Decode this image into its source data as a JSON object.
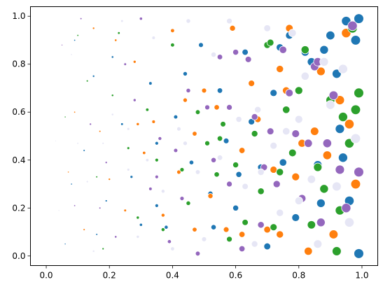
{
  "chart_data": {
    "type": "scatter",
    "title": "",
    "xlabel": "",
    "ylabel": "",
    "xlim": [
      -0.05,
      1.05
    ],
    "ylim": [
      -0.04,
      1.04
    ],
    "grid": false,
    "legend": "none",
    "x_ticks": [
      "0.0",
      "0.2",
      "0.4",
      "0.6",
      "0.8",
      "1.0"
    ],
    "y_ticks": [
      "0.0",
      "0.2",
      "0.4",
      "0.6",
      "0.8",
      "1.0"
    ],
    "x_tick_values": [
      0,
      0.2,
      0.4,
      0.6,
      0.8,
      1.0
    ],
    "y_tick_values": [
      0,
      0.2,
      0.4,
      0.6,
      0.8,
      1.0
    ],
    "marker_note": "marker size grows with x",
    "series": [
      {
        "color": "#1f77b4",
        "points": [
          [
            0.06,
            0.05
          ],
          [
            0.08,
            0.3
          ],
          [
            0.09,
            0.9
          ],
          [
            0.12,
            0.44
          ],
          [
            0.15,
            0.75
          ],
          [
            0.16,
            0.09
          ],
          [
            0.19,
            0.23
          ],
          [
            0.21,
            0.83
          ],
          [
            0.24,
            0.55
          ],
          [
            0.27,
            0.33
          ],
          [
            0.3,
            0.13
          ],
          [
            0.33,
            0.72
          ],
          [
            0.35,
            0.47
          ],
          [
            0.38,
            0.12
          ],
          [
            0.41,
            0.58
          ],
          [
            0.44,
            0.76
          ],
          [
            0.46,
            0.39
          ],
          [
            0.49,
            0.88
          ],
          [
            0.52,
            0.26
          ],
          [
            0.55,
            0.69
          ],
          [
            0.57,
            0.48
          ],
          [
            0.6,
            0.2
          ],
          [
            0.63,
            0.85
          ],
          [
            0.65,
            0.56
          ],
          [
            0.68,
            0.37
          ],
          [
            0.7,
            0.04
          ],
          [
            0.72,
            0.68
          ],
          [
            0.74,
            0.87
          ],
          [
            0.75,
            0.39
          ],
          [
            0.77,
            0.92
          ],
          [
            0.79,
            0.16
          ],
          [
            0.82,
            0.85
          ],
          [
            0.84,
            0.81
          ],
          [
            0.86,
            0.38
          ],
          [
            0.87,
            0.22
          ],
          [
            0.88,
            0.86
          ],
          [
            0.9,
            0.92
          ],
          [
            0.92,
            0.76
          ],
          [
            0.93,
            0.53
          ],
          [
            0.95,
            0.98
          ],
          [
            0.96,
            0.23
          ],
          [
            0.98,
            0.9
          ],
          [
            0.99,
            0.01
          ],
          [
            0.99,
            0.99
          ],
          [
            0.94,
            0.41
          ],
          [
            0.61,
            0.34
          ],
          [
            0.53,
            0.12
          ],
          [
            0.35,
            0.21
          ]
        ]
      },
      {
        "color": "#ff7f0e",
        "points": [
          [
            0.07,
            0.35
          ],
          [
            0.09,
            0.6
          ],
          [
            0.12,
            0.11
          ],
          [
            0.15,
            0.95
          ],
          [
            0.17,
            0.52
          ],
          [
            0.2,
            0.32
          ],
          [
            0.22,
            0.9
          ],
          [
            0.25,
            0.19
          ],
          [
            0.28,
            0.81
          ],
          [
            0.31,
            0.43
          ],
          [
            0.34,
            0.56
          ],
          [
            0.37,
            0.17
          ],
          [
            0.4,
            0.94
          ],
          [
            0.42,
            0.35
          ],
          [
            0.44,
            0.65
          ],
          [
            0.47,
            0.11
          ],
          [
            0.5,
            0.69
          ],
          [
            0.52,
            0.25
          ],
          [
            0.54,
            0.62
          ],
          [
            0.57,
            0.11
          ],
          [
            0.59,
            0.95
          ],
          [
            0.62,
            0.44
          ],
          [
            0.65,
            0.72
          ],
          [
            0.67,
            0.57
          ],
          [
            0.7,
            0.11
          ],
          [
            0.72,
            0.36
          ],
          [
            0.74,
            0.78
          ],
          [
            0.76,
            0.69
          ],
          [
            0.77,
            0.95
          ],
          [
            0.79,
            0.33
          ],
          [
            0.81,
            0.47
          ],
          [
            0.83,
            0.02
          ],
          [
            0.85,
            0.52
          ],
          [
            0.87,
            0.77
          ],
          [
            0.89,
            0.42
          ],
          [
            0.91,
            0.09
          ],
          [
            0.93,
            0.65
          ],
          [
            0.95,
            0.93
          ],
          [
            0.96,
            0.55
          ],
          [
            0.98,
            0.3
          ],
          [
            0.74,
            0.09
          ],
          [
            0.62,
            0.09
          ],
          [
            0.47,
            0.51
          ],
          [
            0.29,
            0.55
          ]
        ]
      },
      {
        "color": "#2ca02c",
        "points": [
          [
            0.06,
            0.58
          ],
          [
            0.1,
            0.92
          ],
          [
            0.13,
            0.73
          ],
          [
            0.16,
            0.33
          ],
          [
            0.18,
            0.03
          ],
          [
            0.21,
            0.67
          ],
          [
            0.23,
            0.93
          ],
          [
            0.26,
            0.45
          ],
          [
            0.29,
            0.16
          ],
          [
            0.32,
            0.61
          ],
          [
            0.35,
            0.4
          ],
          [
            0.37,
            0.11
          ],
          [
            0.4,
            0.88
          ],
          [
            0.43,
            0.36
          ],
          [
            0.45,
            0.22
          ],
          [
            0.48,
            0.6
          ],
          [
            0.51,
            0.47
          ],
          [
            0.54,
            0.34
          ],
          [
            0.56,
            0.55
          ],
          [
            0.58,
            0.07
          ],
          [
            0.6,
            0.38
          ],
          [
            0.63,
            0.14
          ],
          [
            0.66,
            0.51
          ],
          [
            0.68,
            0.27
          ],
          [
            0.7,
            0.88
          ],
          [
            0.72,
            0.12
          ],
          [
            0.74,
            0.35
          ],
          [
            0.76,
            0.61
          ],
          [
            0.78,
            0.43
          ],
          [
            0.8,
            0.69
          ],
          [
            0.82,
            0.86
          ],
          [
            0.84,
            0.13
          ],
          [
            0.86,
            0.37
          ],
          [
            0.88,
            0.28
          ],
          [
            0.9,
            0.65
          ],
          [
            0.92,
            0.02
          ],
          [
            0.94,
            0.58
          ],
          [
            0.96,
            0.47
          ],
          [
            0.97,
            0.95
          ],
          [
            0.99,
            0.68
          ],
          [
            0.93,
            0.19
          ],
          [
            0.98,
            0.61
          ],
          [
            0.71,
            0.89
          ],
          [
            0.55,
            0.49
          ]
        ]
      },
      {
        "color": "#9467bd",
        "points": [
          [
            0.05,
            0.88
          ],
          [
            0.09,
            0.21
          ],
          [
            0.11,
            0.99
          ],
          [
            0.14,
            0.55
          ],
          [
            0.17,
            0.2
          ],
          [
            0.19,
            0.39
          ],
          [
            0.22,
            0.08
          ],
          [
            0.25,
            0.8
          ],
          [
            0.28,
            0.65
          ],
          [
            0.3,
            0.99
          ],
          [
            0.33,
            0.28
          ],
          [
            0.36,
            0.49
          ],
          [
            0.39,
            0.06
          ],
          [
            0.41,
            0.44
          ],
          [
            0.43,
            0.24
          ],
          [
            0.45,
            0.69
          ],
          [
            0.48,
            0.01
          ],
          [
            0.51,
            0.62
          ],
          [
            0.53,
            0.4
          ],
          [
            0.55,
            0.83
          ],
          [
            0.58,
            0.3
          ],
          [
            0.6,
            0.85
          ],
          [
            0.62,
            0.03
          ],
          [
            0.64,
            0.82
          ],
          [
            0.66,
            0.58
          ],
          [
            0.68,
            0.13
          ],
          [
            0.69,
            0.37
          ],
          [
            0.71,
            0.52
          ],
          [
            0.73,
            0.3
          ],
          [
            0.75,
            0.86
          ],
          [
            0.77,
            0.68
          ],
          [
            0.79,
            0.51
          ],
          [
            0.81,
            0.24
          ],
          [
            0.83,
            0.47
          ],
          [
            0.85,
            0.79
          ],
          [
            0.87,
            0.14
          ],
          [
            0.89,
            0.47
          ],
          [
            0.91,
            0.67
          ],
          [
            0.93,
            0.36
          ],
          [
            0.95,
            0.2
          ],
          [
            0.97,
            0.96
          ],
          [
            0.99,
            0.35
          ],
          [
            0.86,
            0.81
          ],
          [
            0.58,
            0.62
          ],
          [
            0.35,
            0.33
          ]
        ]
      },
      {
        "color": "#e6e6f5",
        "points": [
          [
            0.03,
            0.48
          ],
          [
            0.04,
            0.19
          ],
          [
            0.08,
            0.84
          ],
          [
            0.1,
            0.47
          ],
          [
            0.13,
            0.31
          ],
          [
            0.15,
            0.02
          ],
          [
            0.18,
            0.47
          ],
          [
            0.21,
            0.59
          ],
          [
            0.24,
            0.98
          ],
          [
            0.26,
            0.36
          ],
          [
            0.29,
            0.08
          ],
          [
            0.32,
            0.4
          ],
          [
            0.34,
            0.91
          ],
          [
            0.37,
            0.27
          ],
          [
            0.4,
            0.03
          ],
          [
            0.42,
            0.53
          ],
          [
            0.45,
            0.98
          ],
          [
            0.48,
            0.35
          ],
          [
            0.5,
            0.07
          ],
          [
            0.53,
            0.84
          ],
          [
            0.55,
            0.41
          ],
          [
            0.58,
            0.98
          ],
          [
            0.61,
            0.57
          ],
          [
            0.63,
            0.29
          ],
          [
            0.66,
            0.05
          ],
          [
            0.67,
            0.61
          ],
          [
            0.7,
            0.95
          ],
          [
            0.72,
            0.46
          ],
          [
            0.74,
            0.18
          ],
          [
            0.76,
            0.52
          ],
          [
            0.78,
            0.93
          ],
          [
            0.8,
            0.57
          ],
          [
            0.82,
            0.75
          ],
          [
            0.84,
            0.32
          ],
          [
            0.86,
            0.05
          ],
          [
            0.88,
            0.81
          ],
          [
            0.9,
            0.63
          ],
          [
            0.92,
            0.29
          ],
          [
            0.94,
            0.78
          ],
          [
            0.96,
            0.14
          ],
          [
            0.98,
            0.49
          ],
          [
            0.8,
            0.23
          ],
          [
            0.68,
            0.35
          ],
          [
            0.44,
            0.47
          ],
          [
            0.26,
            0.53
          ]
        ]
      }
    ]
  }
}
